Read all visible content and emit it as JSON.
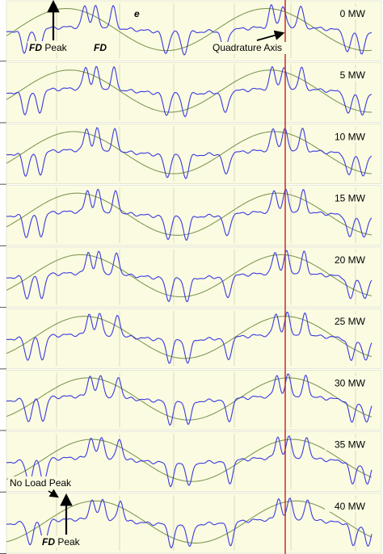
{
  "chart_data": {
    "type": "line",
    "colors": {
      "background": "#fbfbe2",
      "flux_trace": "#3a3ae0",
      "emf_trace": "#7f9a55",
      "quadrature_axis": "#c02020",
      "guide_lines": "#c9c9b0"
    },
    "panels": [
      {
        "label": "0 MW",
        "load_mw": 0
      },
      {
        "label": "5 MW",
        "load_mw": 5
      },
      {
        "label": "10 MW",
        "load_mw": 10
      },
      {
        "label": "15 MW",
        "load_mw": 15
      },
      {
        "label": "20 MW",
        "load_mw": 20
      },
      {
        "label": "25 MW",
        "load_mw": 25
      },
      {
        "label": "30 MW",
        "load_mw": 30
      },
      {
        "label": "35 MW",
        "load_mw": 35
      },
      {
        "label": "40 MW",
        "load_mw": 40
      }
    ],
    "annotations": {
      "fd_peak_top": {
        "prefix": "FD",
        "suffix": " Peak"
      },
      "fd_label": "FD",
      "e_label": "e",
      "quadrature_axis": "Quadrature Axis",
      "no_load_peak": "No Load Peak",
      "fd_peak_bottom": {
        "prefix": "FD",
        "suffix": " Peak"
      }
    }
  }
}
